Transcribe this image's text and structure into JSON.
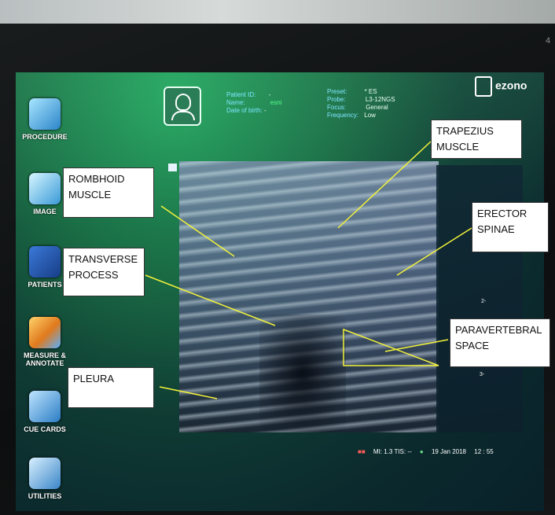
{
  "sidebar": {
    "items": [
      {
        "label": "PROCEDURE",
        "icon": "procedure-icon"
      },
      {
        "label": "IMAGE",
        "icon": "image-icon"
      },
      {
        "label": "PATIENTS",
        "icon": "patients-icon"
      },
      {
        "label": "MEASURE & ANNOTATE",
        "icon": "measure-icon"
      },
      {
        "label": "CUE CARDS",
        "icon": "cue-cards-icon"
      },
      {
        "label": "UTILITIES",
        "icon": "utilities-icon"
      }
    ]
  },
  "patient": {
    "id_label": "Patient ID:",
    "id_value": "-",
    "name_label": "Name:",
    "name_value": "esni",
    "dob_label": "Date of birth:",
    "dob_value": "-"
  },
  "probe_info": {
    "preset_label": "Preset:",
    "preset_value": "* ES",
    "probe_label": "Probe:",
    "probe_value": "L3-12NGS",
    "focus_label": "Focus:",
    "focus_value": "General",
    "frequency_label": "Frequency:",
    "frequency_value": "Low"
  },
  "logo": {
    "text": "ezono"
  },
  "depth_marks": {
    "d2": "2-",
    "d3": "3-"
  },
  "annotations": {
    "trapezius": "TRAPEZIUS MUSCLE",
    "rhomboid": "ROMBHOID MUSCLE",
    "erector": "ERECTOR SPINAE",
    "transverse": "TRANSVERSE PROCESS",
    "paravertebral": "PARAVERTEBRAL SPACE",
    "pleura": "PLEURA"
  },
  "status": {
    "mi": "MI: 1.3 TIS: --",
    "date": "19 Jan 2018",
    "time": "12 : 55"
  },
  "corner": "4",
  "colors": {
    "annotation_line": "#f2f23a",
    "screen_green": "#1a6c45"
  }
}
